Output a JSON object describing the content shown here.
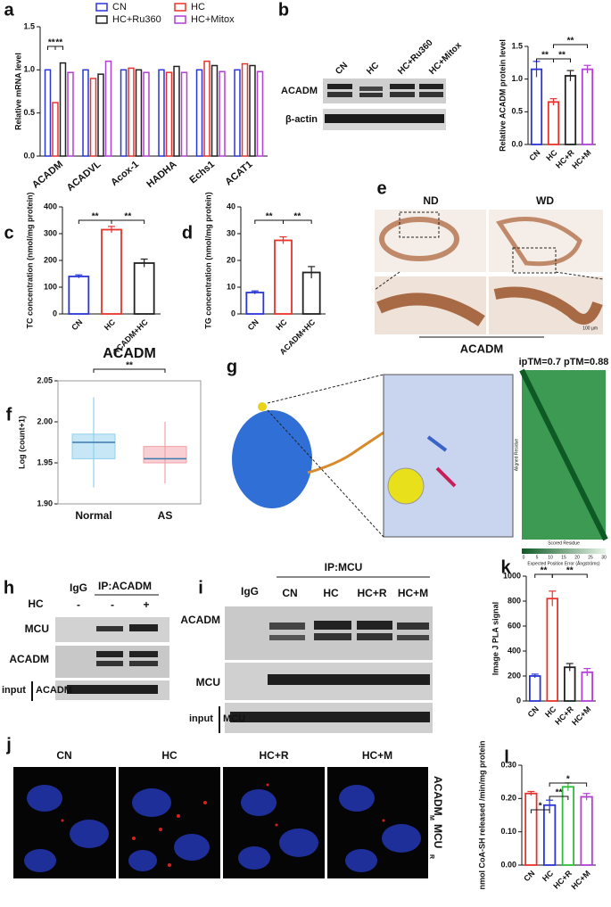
{
  "chart_data": [
    {
      "panel": "a",
      "type": "bar",
      "y_label": "Relative mRNA level",
      "categories": [
        "ACADM",
        "ACADVL",
        "Acox-1",
        "HADHA",
        "Echs1",
        "ACAT1"
      ],
      "series": [
        {
          "name": "CN",
          "color": "#2a36d6",
          "values": [
            1.0,
            1.0,
            1.0,
            1.0,
            1.0,
            1.0
          ]
        },
        {
          "name": "HC",
          "color": "#e8332c",
          "values": [
            0.62,
            0.9,
            1.02,
            0.97,
            1.1,
            1.07
          ]
        },
        {
          "name": "HC+Ru360",
          "color": "#222222",
          "values": [
            1.08,
            0.95,
            1.0,
            1.04,
            1.05,
            1.05
          ]
        },
        {
          "name": "HC+Mitox",
          "color": "#b43fd6",
          "values": [
            0.97,
            1.1,
            0.97,
            0.97,
            0.98,
            0.98
          ]
        }
      ],
      "ylim": [
        0,
        1.5
      ],
      "yticks": [
        {
          "value": 0,
          "label": "0.0"
        },
        {
          "value": 0.5,
          "label": "0.5"
        },
        {
          "value": 1,
          "label": "1.0"
        },
        {
          "value": 1.5,
          "label": "1.5"
        }
      ],
      "annotations": [
        "**",
        "**"
      ]
    },
    {
      "panel": "b",
      "type": "bar",
      "y_label": "Relative ACADM protein level",
      "categories": [
        "CN",
        "HC",
        "HC+R",
        "HC+M"
      ],
      "values": [
        1.15,
        0.65,
        1.05,
        1.15
      ],
      "errors": [
        0.12,
        0.05,
        0.08,
        0.06
      ],
      "colors": [
        "#2a36d6",
        "#e8332c",
        "#222222",
        "#b43fd6"
      ],
      "ylim": [
        0,
        1.5
      ],
      "yticks": [
        {
          "value": 0,
          "label": "0.0"
        },
        {
          "value": 0.5,
          "label": "0.5"
        },
        {
          "value": 1,
          "label": "1.0"
        },
        {
          "value": 1.5,
          "label": "1.5"
        }
      ],
      "annotations": [
        "**",
        "**",
        "**"
      ]
    },
    {
      "panel": "c",
      "type": "bar",
      "y_label": "TC concentration (nmol/mg protein)",
      "categories": [
        "CN",
        "HC",
        "ACADM+HC"
      ],
      "values": [
        140,
        315,
        190
      ],
      "errors": [
        6,
        12,
        15
      ],
      "colors": [
        "#2a36d6",
        "#e8332c",
        "#222222"
      ],
      "ylim": [
        0,
        400
      ],
      "yticks": [
        0,
        100,
        200,
        300,
        400
      ],
      "annotations": [
        "**",
        "**"
      ]
    },
    {
      "panel": "d",
      "type": "bar",
      "y_label": "TG concentration (nmol/mg protein)",
      "categories": [
        "CN",
        "HC",
        "ACADM+HC"
      ],
      "values": [
        8,
        27.5,
        15.5
      ],
      "errors": [
        0.6,
        1.3,
        2.2
      ],
      "colors": [
        "#2a36d6",
        "#e8332c",
        "#222222"
      ],
      "ylim": [
        0,
        40
      ],
      "yticks": [
        0,
        10,
        20,
        30,
        40
      ],
      "annotations": [
        "**",
        "**"
      ]
    },
    {
      "panel": "f",
      "type": "box",
      "title": "ACADM",
      "y_label": "Log (count+1)",
      "categories": [
        "Normal",
        "AS"
      ],
      "colors": [
        "#8fd0ee",
        "#f2a0a8"
      ],
      "whisker_low": [
        1.92,
        1.925
      ],
      "q1": [
        1.955,
        1.95
      ],
      "median": [
        1.975,
        1.955
      ],
      "q3": [
        1.985,
        1.97
      ],
      "whisker_high": [
        2.03,
        2.0
      ],
      "ylim": [
        1.9,
        2.05
      ],
      "yticks": [
        {
          "value": 1.9,
          "label": "1.90"
        },
        {
          "value": 1.95,
          "label": "1.95"
        },
        {
          "value": 2,
          "label": "2.00"
        },
        {
          "value": 2.05,
          "label": "2.05"
        }
      ],
      "annotations": [
        "**"
      ]
    },
    {
      "panel": "k",
      "type": "bar",
      "y_label": "Image J PLA signal",
      "categories": [
        "CN",
        "HC",
        "HC+R",
        "HC+M"
      ],
      "values": [
        200,
        820,
        270,
        230
      ],
      "errors": [
        15,
        60,
        30,
        30
      ],
      "colors": [
        "#2a36d6",
        "#e8332c",
        "#222222",
        "#b43fd6"
      ],
      "ylim": [
        0,
        1000
      ],
      "yticks": [
        0,
        200,
        400,
        600,
        800,
        1000
      ],
      "annotations": [
        "**",
        "**"
      ]
    },
    {
      "panel": "l",
      "type": "bar",
      "y_label": "nmol CoA-SH released /min/mg protein",
      "categories": [
        "CN",
        "HC",
        "HC+R",
        "HC+M"
      ],
      "values": [
        0.215,
        0.18,
        0.235,
        0.205
      ],
      "errors": [
        0.006,
        0.015,
        0.012,
        0.01
      ],
      "colors": [
        "#e8332c",
        "#2a36d6",
        "#2fbf3a",
        "#b43fd6"
      ],
      "ylim": [
        0,
        0.3
      ],
      "yticks": [
        {
          "value": 0,
          "label": "0.00"
        },
        {
          "value": 0.1,
          "label": "0.10"
        },
        {
          "value": 0.2,
          "label": "0.20"
        },
        {
          "value": 0.3,
          "label": "0.30"
        }
      ],
      "annotations": [
        "*",
        "**",
        "*"
      ]
    }
  ],
  "blot_b": {
    "lanes": [
      "CN",
      "HC",
      "HC+Ru360",
      "HC+Mitox"
    ],
    "rows": [
      "ACADM",
      "β-actin"
    ]
  },
  "panel_e": {
    "panel": "e",
    "columns": [
      "ND",
      "WD"
    ],
    "stain": "ACADM",
    "scale": "100 µm"
  },
  "panel_g": {
    "panel": "g",
    "title": "ipTM=0.7 pTM=0.88",
    "x_label": "Scored Residue",
    "y_label": "Aligned Residue",
    "colorbar_label": "Expected Position Error (Ångströms)",
    "colorbar_ticks": [
      0,
      5,
      10,
      15,
      20,
      25,
      30
    ]
  },
  "panel_h": {
    "panel": "h",
    "control": "IgG",
    "ip": "IP:ACADM",
    "treatment": "HC",
    "lanes": [
      "-",
      "-",
      "+"
    ],
    "rows": [
      "MCU",
      "ACADM"
    ],
    "input": "input",
    "input_row": "ACADM"
  },
  "panel_i": {
    "panel": "i",
    "control": "IgG",
    "ip": "IP:MCU",
    "lanes": [
      "CN",
      "HC",
      "HC+R",
      "HC+M"
    ],
    "rows": [
      "ACADM",
      "MCU"
    ],
    "input": "input",
    "input_row": "MCU"
  },
  "panel_j": {
    "panel": "j",
    "columns": [
      "CN",
      "HC",
      "HC+R",
      "HC+M"
    ],
    "stain": "ACADM",
    "stain_sub": "M",
    "stain2": "MCU",
    "stain2_sub": "R"
  }
}
